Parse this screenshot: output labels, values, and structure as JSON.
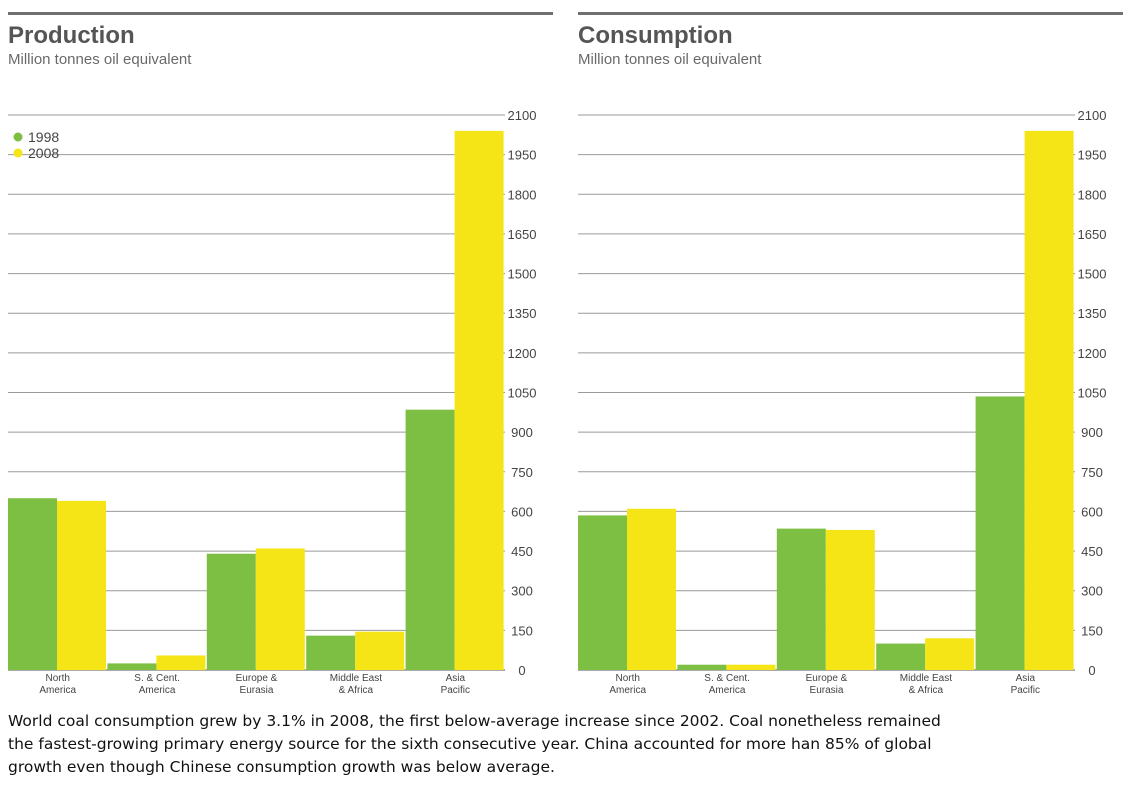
{
  "chart_data": [
    {
      "type": "bar",
      "title": "Production",
      "subtitle": "Million tonnes oil equivalent",
      "categories": [
        [
          "North",
          "America"
        ],
        [
          "S. & Cent.",
          "America"
        ],
        [
          "Europe &",
          "Eurasia"
        ],
        [
          "Middle East",
          "& Africa"
        ],
        [
          "Asia",
          "Pacific"
        ]
      ],
      "series": [
        {
          "name": "1998",
          "color": "#7dbf42",
          "values": [
            650,
            25,
            440,
            130,
            985
          ]
        },
        {
          "name": "2008",
          "color": "#f5e516",
          "values": [
            640,
            55,
            460,
            145,
            2040
          ]
        }
      ],
      "ylim": [
        0,
        2100
      ],
      "yticks": [
        "0",
        "150",
        "300",
        "450",
        "600",
        "750",
        "900",
        "1050",
        "1200",
        "1350",
        "1500",
        "1650",
        "1800",
        "1950",
        "2100"
      ],
      "legend": "top-left",
      "grid": true
    },
    {
      "type": "bar",
      "title": "Consumption",
      "subtitle": "Million tonnes oil equivalent",
      "categories": [
        [
          "North",
          "America"
        ],
        [
          "S. & Cent.",
          "America"
        ],
        [
          "Europe &",
          "Eurasia"
        ],
        [
          "Middle East",
          "& Africa"
        ],
        [
          "Asia",
          "Pacific"
        ]
      ],
      "series": [
        {
          "name": "1998",
          "color": "#7dbf42",
          "values": [
            585,
            20,
            535,
            100,
            1035
          ]
        },
        {
          "name": "2008",
          "color": "#f5e516",
          "values": [
            610,
            20,
            530,
            120,
            2040
          ]
        }
      ],
      "ylim": [
        0,
        2100
      ],
      "yticks": [
        "0",
        "150",
        "300",
        "450",
        "600",
        "750",
        "900",
        "1050",
        "1200",
        "1350",
        "1500",
        "1650",
        "1800",
        "1950",
        "2100"
      ],
      "grid": true
    }
  ],
  "caption": [
    "World coal consumption grew by 3.1% in 2008, the first below-average increase since 2002. Coal nonetheless remained",
    " the fastest-growing primary energy source for the sixth consecutive year. China accounted for more han 85% of global",
    "growth even though Chinese consumption growth was below average."
  ]
}
